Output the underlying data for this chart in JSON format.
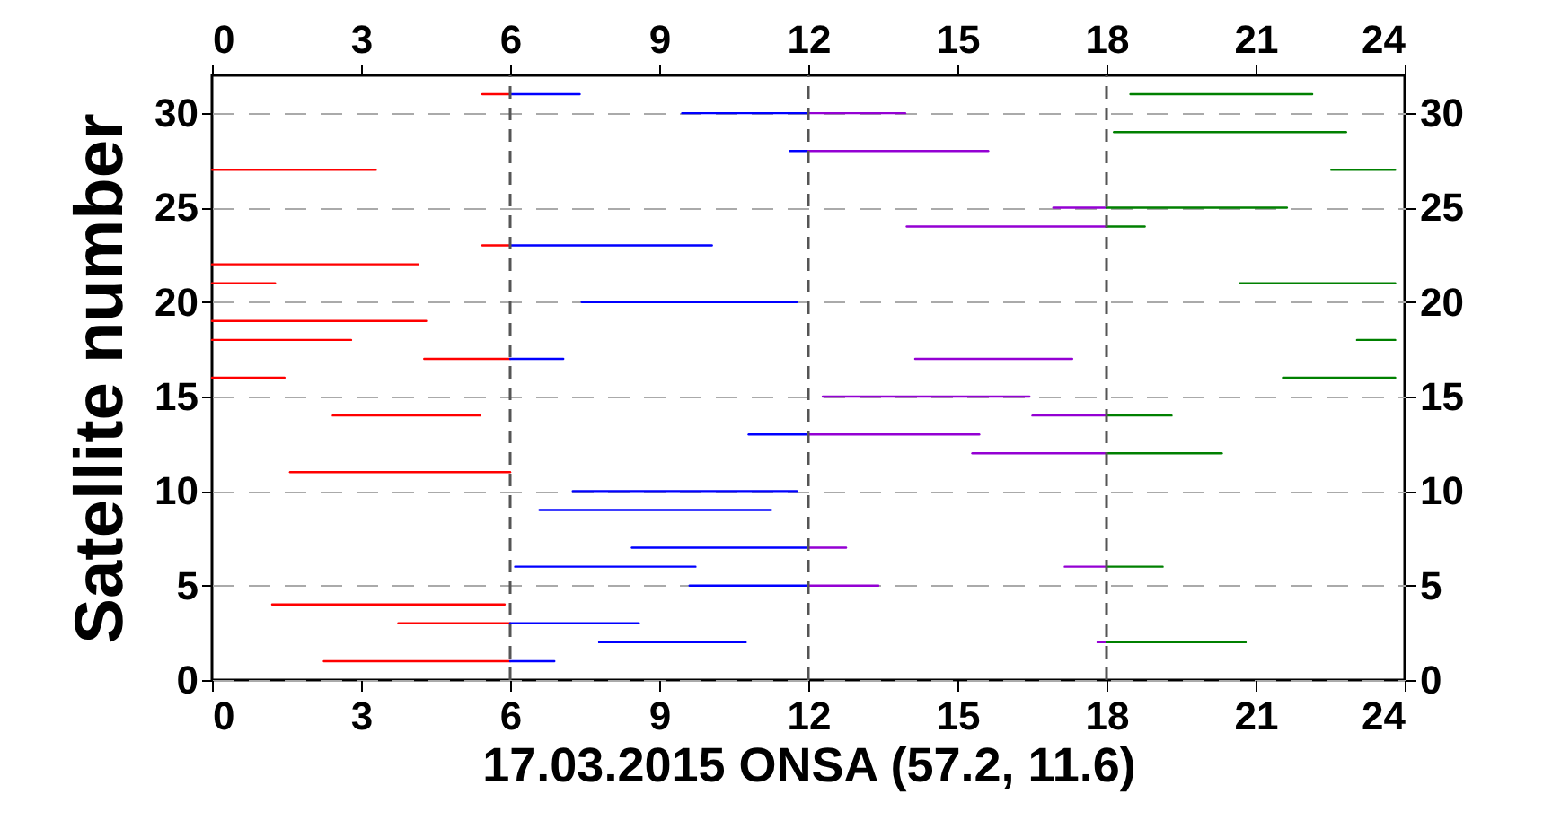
{
  "chart_data": {
    "type": "line",
    "xlabel": "17.03.2015 ONSA (57.2, 11.6)",
    "ylabel": "Satellite   number",
    "xlim": [
      0,
      24
    ],
    "xticks": [
      0,
      3,
      6,
      9,
      12,
      15,
      18,
      21,
      24
    ],
    "x2lim": [
      0,
      24
    ],
    "x2ticks": [
      0,
      3,
      6,
      9,
      12,
      15,
      18,
      21,
      24
    ],
    "ylim": [
      0,
      32
    ],
    "yticks": [
      0,
      5,
      10,
      15,
      20,
      25,
      30
    ],
    "y2lim": [
      0,
      32
    ],
    "y2ticks": [
      0,
      5,
      10,
      15,
      20,
      25,
      30
    ],
    "grid": "y",
    "ref_lines": [
      {
        "axis": "x",
        "value": 6,
        "color": "#555555",
        "line_style": "dashed"
      },
      {
        "axis": "x",
        "value": 12,
        "color": "#555555",
        "line_style": "dashed"
      },
      {
        "axis": "x",
        "value": 18,
        "color": "#555555",
        "line_style": "dashed"
      }
    ],
    "series": [
      {
        "color": "#ff0000",
        "x": [
          5.44,
          6
        ],
        "values": [
          31,
          31
        ]
      },
      {
        "color": "#0000ff",
        "x": [
          6,
          7.4
        ],
        "values": [
          31,
          31
        ]
      },
      {
        "color": "#0000ff",
        "x": [
          9.46,
          12
        ],
        "values": [
          30,
          30
        ]
      },
      {
        "color": "#9400d3",
        "x": [
          12,
          13.95
        ],
        "values": [
          30,
          30
        ]
      },
      {
        "color": "#0000ff",
        "x": [
          11.63,
          12
        ],
        "values": [
          28,
          28
        ]
      },
      {
        "color": "#9400d3",
        "x": [
          12,
          15.62
        ],
        "values": [
          28,
          28
        ]
      },
      {
        "color": "#ff0000",
        "x": [
          0,
          3.3
        ],
        "values": [
          27,
          27
        ]
      },
      {
        "color": "#ff0000",
        "x": [
          5.44,
          6
        ],
        "values": [
          23,
          23
        ]
      },
      {
        "color": "#0000ff",
        "x": [
          6,
          10.06
        ],
        "values": [
          23,
          23
        ]
      },
      {
        "color": "#ff0000",
        "x": [
          0,
          4.15
        ],
        "values": [
          22,
          22
        ]
      },
      {
        "color": "#ff0000",
        "x": [
          0,
          1.27
        ],
        "values": [
          21,
          21
        ]
      },
      {
        "color": "#0000ff",
        "x": [
          7.44,
          11.77
        ],
        "values": [
          20,
          20
        ]
      },
      {
        "color": "#ff0000",
        "x": [
          0,
          4.31
        ],
        "values": [
          19,
          19
        ]
      },
      {
        "color": "#ff0000",
        "x": [
          0,
          2.8
        ],
        "values": [
          18,
          18
        ]
      },
      {
        "color": "#ff0000",
        "x": [
          4.27,
          6
        ],
        "values": [
          17,
          17
        ]
      },
      {
        "color": "#0000ff",
        "x": [
          6,
          7.07
        ],
        "values": [
          17,
          17
        ]
      },
      {
        "color": "#ff0000",
        "x": [
          0,
          1.46
        ],
        "values": [
          16,
          16
        ]
      },
      {
        "color": "#ff0000",
        "x": [
          2.43,
          5.4
        ],
        "values": [
          14,
          14
        ]
      },
      {
        "color": "#0000ff",
        "x": [
          10.8,
          12
        ],
        "values": [
          13,
          13
        ]
      },
      {
        "color": "#9400d3",
        "x": [
          12,
          15.44
        ],
        "values": [
          13,
          13
        ]
      },
      {
        "color": "#ff0000",
        "x": [
          1.57,
          6
        ],
        "values": [
          11,
          11
        ]
      },
      {
        "color": "#0000ff",
        "x": [
          7.26,
          11.77
        ],
        "values": [
          10,
          10
        ]
      },
      {
        "color": "#0000ff",
        "x": [
          6.59,
          11.25
        ],
        "values": [
          9,
          9
        ]
      },
      {
        "color": "#0000ff",
        "x": [
          8.45,
          12
        ],
        "values": [
          7,
          7
        ]
      },
      {
        "color": "#9400d3",
        "x": [
          12,
          12.76
        ],
        "values": [
          7,
          7
        ]
      },
      {
        "color": "#0000ff",
        "x": [
          6.1,
          9.73
        ],
        "values": [
          6,
          6
        ]
      },
      {
        "color": "#0000ff",
        "x": [
          9.61,
          12
        ],
        "values": [
          5,
          5
        ]
      },
      {
        "color": "#9400d3",
        "x": [
          12,
          13.41
        ],
        "values": [
          5,
          5
        ]
      },
      {
        "color": "#ff0000",
        "x": [
          1.21,
          5.89
        ],
        "values": [
          4,
          4
        ]
      },
      {
        "color": "#ff0000",
        "x": [
          3.75,
          6
        ],
        "values": [
          3,
          3
        ]
      },
      {
        "color": "#0000ff",
        "x": [
          6,
          8.59
        ],
        "values": [
          3,
          3
        ]
      },
      {
        "color": "#0000ff",
        "x": [
          7.79,
          10.74
        ],
        "values": [
          2,
          2
        ]
      },
      {
        "color": "#ff0000",
        "x": [
          2.25,
          6
        ],
        "values": [
          1,
          1
        ]
      },
      {
        "color": "#0000ff",
        "x": [
          6,
          6.89
        ],
        "values": [
          1,
          1
        ]
      },
      {
        "color": "#9400d3",
        "x": [
          16.93,
          18
        ],
        "values": [
          25,
          25
        ]
      },
      {
        "color": "#9400d3",
        "x": [
          13.98,
          18
        ],
        "values": [
          24,
          24
        ]
      },
      {
        "color": "#9400d3",
        "x": [
          14.15,
          17.31
        ],
        "values": [
          17,
          17
        ]
      },
      {
        "color": "#9400d3",
        "x": [
          12.29,
          16.45
        ],
        "values": [
          15,
          15
        ]
      },
      {
        "color": "#9400d3",
        "x": [
          16.51,
          18
        ],
        "values": [
          14,
          14
        ]
      },
      {
        "color": "#9400d3",
        "x": [
          15.3,
          18
        ],
        "values": [
          12,
          12
        ]
      },
      {
        "color": "#9400d3",
        "x": [
          17.16,
          18
        ],
        "values": [
          6,
          6
        ]
      },
      {
        "color": "#9400d3",
        "x": [
          17.82,
          18
        ],
        "values": [
          2,
          2
        ]
      },
      {
        "color": "#008000",
        "x": [
          18.48,
          22.14
        ],
        "values": [
          31,
          31
        ]
      },
      {
        "color": "#008000",
        "x": [
          18.15,
          22.82
        ],
        "values": [
          29,
          29
        ]
      },
      {
        "color": "#008000",
        "x": [
          22.52,
          23.81
        ],
        "values": [
          27,
          27
        ]
      },
      {
        "color": "#008000",
        "x": [
          18,
          21.63
        ],
        "values": [
          25,
          25
        ]
      },
      {
        "color": "#008000",
        "x": [
          18,
          18.77
        ],
        "values": [
          24,
          24
        ]
      },
      {
        "color": "#008000",
        "x": [
          20.68,
          23.81
        ],
        "values": [
          21,
          21
        ]
      },
      {
        "color": "#008000",
        "x": [
          23.04,
          23.81
        ],
        "values": [
          18,
          18
        ]
      },
      {
        "color": "#008000",
        "x": [
          21.55,
          23.81
        ],
        "values": [
          16,
          16
        ]
      },
      {
        "color": "#008000",
        "x": [
          18,
          19.31
        ],
        "values": [
          14,
          14
        ]
      },
      {
        "color": "#008000",
        "x": [
          18,
          20.32
        ],
        "values": [
          12,
          12
        ]
      },
      {
        "color": "#008000",
        "x": [
          18,
          19.13
        ],
        "values": [
          6,
          6
        ]
      },
      {
        "color": "#008000",
        "x": [
          18,
          20.8
        ],
        "values": [
          2,
          2
        ]
      }
    ]
  }
}
